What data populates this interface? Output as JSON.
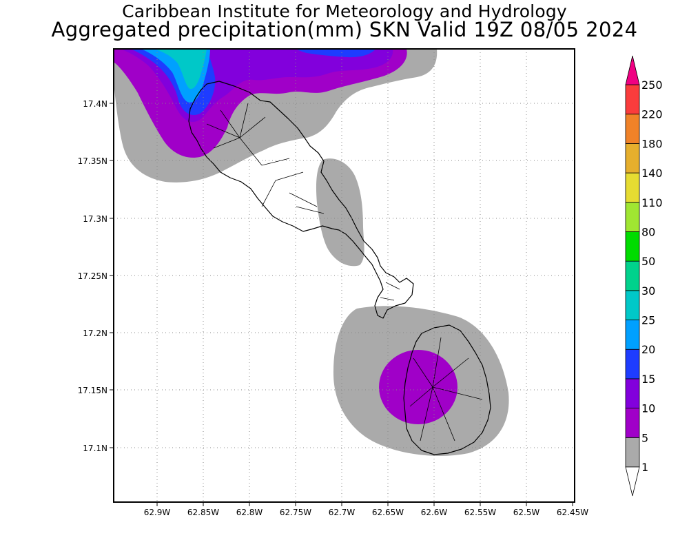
{
  "header": {
    "title": "Caribbean Institute for Meteorology and Hydrology",
    "subtitle": "Aggregated precipitation(mm) SKN Valid 19Z 08/05 2024"
  },
  "axes": {
    "x_ticks": [
      "62.9W",
      "62.85W",
      "62.8W",
      "62.75W",
      "62.7W",
      "62.65W",
      "62.6W",
      "62.55W",
      "62.5W",
      "62.45W"
    ],
    "y_ticks": [
      "17.4N",
      "17.35N",
      "17.3N",
      "17.25N",
      "17.2N",
      "17.15N",
      "17.1N"
    ]
  },
  "colorbar": {
    "levels": [
      "1",
      "5",
      "10",
      "15",
      "20",
      "25",
      "30",
      "50",
      "80",
      "110",
      "140",
      "180",
      "220",
      "250"
    ],
    "colors": [
      "#aaaaaa",
      "#a000c8",
      "#8200dc",
      "#1e3cff",
      "#00a0ff",
      "#00c8c8",
      "#00d28c",
      "#00dc00",
      "#a0e632",
      "#e6dc32",
      "#e6af2d",
      "#f08228",
      "#fa3c3c",
      "#f00082"
    ]
  },
  "colors": {
    "gray": "#aaaaaa",
    "purple": "#a000c8",
    "violet": "#8200dc",
    "blue": "#1e3cff",
    "lightblue": "#00a0ff",
    "teal": "#00c8c8",
    "island_outline": "#000000"
  }
}
